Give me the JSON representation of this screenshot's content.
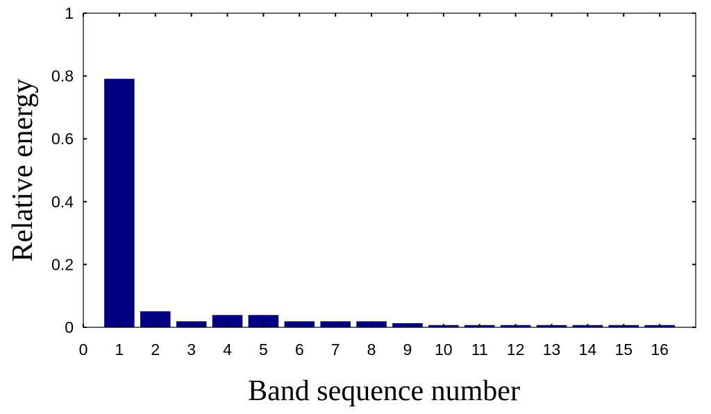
{
  "chart_data": {
    "type": "bar",
    "title": "",
    "xlabel": "Band sequence number",
    "ylabel": "Relative energy",
    "xlim": [
      0,
      17
    ],
    "ylim": [
      0,
      1
    ],
    "x_ticks": [
      "0",
      "1",
      "2",
      "3",
      "4",
      "5",
      "6",
      "7",
      "8",
      "9",
      "10",
      "11",
      "12",
      "13",
      "14",
      "15",
      "16"
    ],
    "y_ticks": [
      "0",
      "0.2",
      "0.4",
      "0.6",
      "0.8",
      "1"
    ],
    "categories": [
      "1",
      "2",
      "3",
      "4",
      "5",
      "6",
      "7",
      "8",
      "9",
      "10",
      "11",
      "12",
      "13",
      "14",
      "15",
      "16"
    ],
    "values": [
      0.79,
      0.05,
      0.018,
      0.038,
      0.038,
      0.018,
      0.018,
      0.018,
      0.012,
      0.006,
      0.006,
      0.006,
      0.006,
      0.006,
      0.006,
      0.006
    ],
    "bar_color": "#000080",
    "grid": false,
    "legend": "none"
  }
}
